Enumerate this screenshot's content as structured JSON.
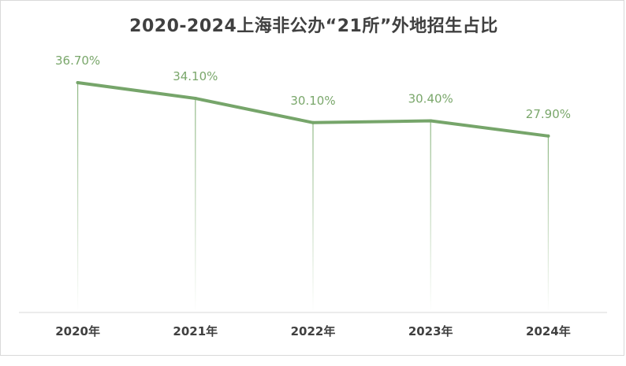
{
  "chart_data": {
    "type": "line",
    "title": "2020-2024上海非公办“21所”外地招生占比",
    "categories": [
      "2020年",
      "2021年",
      "2022年",
      "2023年",
      "2024年"
    ],
    "values": [
      36.7,
      34.1,
      30.1,
      30.4,
      27.9
    ],
    "data_labels": [
      "36.70%",
      "34.10%",
      "30.10%",
      "30.40%",
      "27.90%"
    ],
    "xlabel": "",
    "ylabel": "",
    "y_axis_visible": false,
    "grid": false,
    "drop_lines": true,
    "ylim": [
      0,
      40
    ],
    "colors": {
      "line": "#76a56a",
      "label": "#7aa76b",
      "text": "#404040",
      "axis": "#d9d9d9"
    }
  }
}
